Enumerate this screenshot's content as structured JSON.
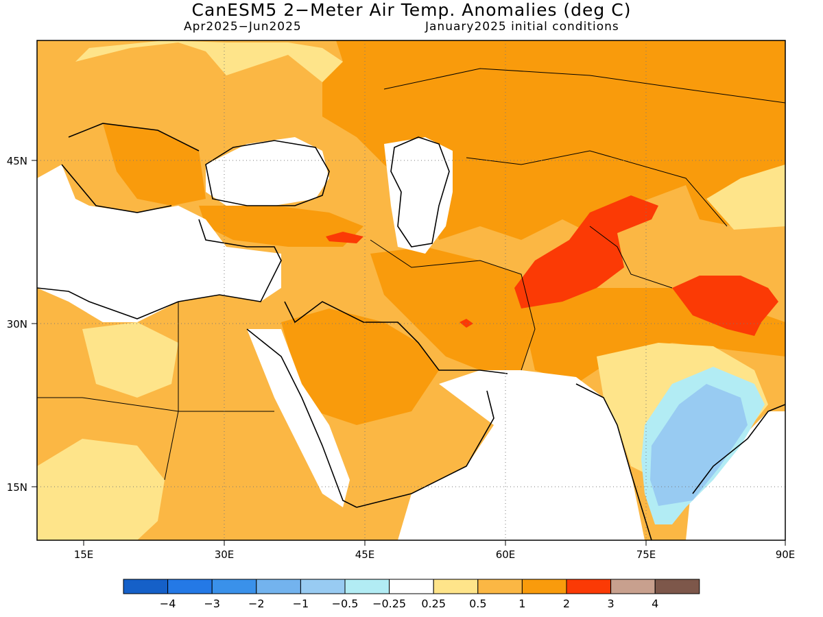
{
  "title": "CanESM5 2−Meter Air Temp. Anomalies (deg C)",
  "subtitle_left": "Apr2025−Jun2025",
  "subtitle_right": "January2025 initial conditions",
  "map": {
    "lon_range": [
      10,
      90
    ],
    "lat_range": [
      9,
      55
    ],
    "x_ticks": [
      "15E",
      "30E",
      "45E",
      "60E",
      "75E",
      "90E"
    ],
    "y_ticks": [
      "45N",
      "30N",
      "15N"
    ]
  },
  "colorbar": {
    "colors": [
      "#1560c8",
      "#2479e6",
      "#3a91ea",
      "#73b3ee",
      "#98cbf2",
      "#b2ecf4",
      "#ffffff",
      "#fee48a",
      "#fbb744",
      "#f99b0c",
      "#fb3a05",
      "#c8a08e",
      "#7d574a"
    ],
    "labels": [
      "−4",
      "−3",
      "−2",
      "−1",
      "−0.5",
      "−0.25",
      "0.25",
      "0.5",
      "1",
      "2",
      "3",
      "4"
    ]
  }
}
